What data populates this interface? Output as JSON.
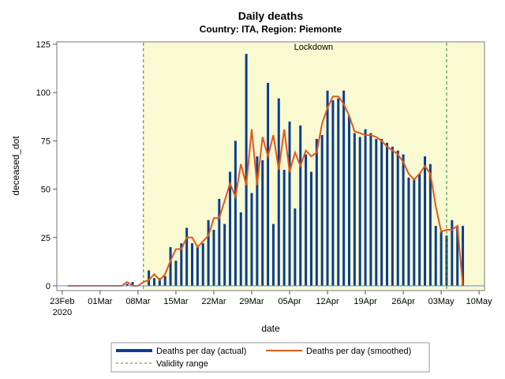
{
  "colors": {
    "bars": "#0b3d91",
    "smooth": "#e15a1c",
    "validity": "#2e8b3a",
    "lockdown_fill": "#fafad2",
    "axis": "#555555",
    "text": "#000000"
  },
  "chart_data": {
    "type": "bar",
    "title": "Daily deaths",
    "subtitle": "Country: ITA, Region: Piemonte",
    "xlabel": "date",
    "ylabel": "deceased_dot",
    "x_start": "2020-02-24",
    "xlim": [
      "2020-02-22",
      "2020-05-11"
    ],
    "ylim": [
      0,
      125
    ],
    "y_ticks": [
      0,
      25,
      50,
      75,
      100,
      125
    ],
    "x_ticks": [
      {
        "date": "2020-02-23",
        "label": "23Feb",
        "label2": "2020"
      },
      {
        "date": "2020-03-01",
        "label": "01Mar",
        "label2": ""
      },
      {
        "date": "2020-03-08",
        "label": "08Mar",
        "label2": ""
      },
      {
        "date": "2020-03-15",
        "label": "15Mar",
        "label2": ""
      },
      {
        "date": "2020-03-22",
        "label": "22Mar",
        "label2": ""
      },
      {
        "date": "2020-03-29",
        "label": "29Mar",
        "label2": ""
      },
      {
        "date": "2020-04-05",
        "label": "05Apr",
        "label2": ""
      },
      {
        "date": "2020-04-12",
        "label": "12Apr",
        "label2": ""
      },
      {
        "date": "2020-04-19",
        "label": "19Apr",
        "label2": ""
      },
      {
        "date": "2020-04-26",
        "label": "26Apr",
        "label2": ""
      },
      {
        "date": "2020-05-03",
        "label": "03May",
        "label2": ""
      },
      {
        "date": "2020-05-10",
        "label": "10May",
        "label2": ""
      }
    ],
    "lockdown": {
      "label": "Lockdown",
      "start": "2020-03-09",
      "end": "2020-05-11"
    },
    "validity": [
      "2020-03-09",
      "2020-05-04"
    ],
    "series": [
      {
        "name": "Deaths per day (actual)",
        "kind": "bar",
        "values": [
          0,
          0,
          0,
          0,
          0,
          0,
          0,
          0,
          0,
          0,
          0,
          1,
          2,
          0,
          0,
          8,
          4,
          4,
          5,
          20,
          13,
          22,
          30,
          22,
          20,
          22,
          34,
          29,
          45,
          32,
          59,
          75,
          38,
          120,
          48,
          67,
          65,
          105,
          32,
          97,
          60,
          85,
          40,
          83,
          68,
          59,
          76,
          78,
          101,
          96,
          97,
          101,
          88,
          79,
          77,
          81,
          79,
          76,
          76,
          74,
          72,
          70,
          68,
          56,
          55,
          58,
          67,
          63,
          31,
          28,
          26,
          34,
          31,
          31
        ]
      },
      {
        "name": "Deaths per day (smoothed)",
        "kind": "line",
        "values": [
          0,
          0,
          0,
          0,
          0,
          0,
          0,
          0,
          0,
          0,
          0,
          2,
          0,
          0,
          2,
          3,
          6,
          3,
          6,
          13,
          19,
          19,
          25,
          25,
          20,
          23,
          26,
          35,
          35,
          44,
          53,
          46,
          63,
          52,
          81,
          52,
          77,
          67,
          78,
          60,
          81,
          59,
          69,
          62,
          70,
          67,
          69,
          84,
          92,
          98,
          98,
          94,
          88,
          80,
          79,
          78,
          78,
          77,
          75,
          72,
          70,
          68,
          64,
          58,
          55,
          58,
          62,
          58,
          41,
          28,
          29,
          29,
          31,
          0
        ]
      },
      {
        "name": "Validity range",
        "kind": "reference"
      }
    ],
    "legend_position": "bottom"
  }
}
